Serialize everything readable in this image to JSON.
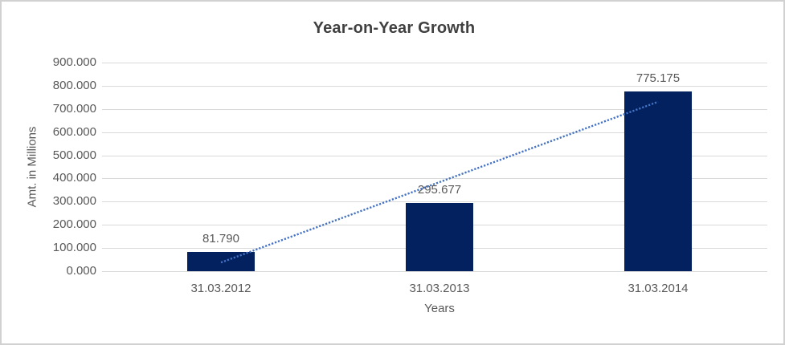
{
  "chart_data": {
    "type": "bar",
    "title": "Year-on-Year Growth",
    "xlabel": "Years",
    "ylabel": "Amt. in Millions",
    "categories": [
      "31.03.2012",
      "31.03.2013",
      "31.03.2014"
    ],
    "values": [
      81790,
      295677,
      775175
    ],
    "value_labels": [
      "81.790",
      "295.677",
      "775.175"
    ],
    "ytick_values": [
      0,
      100000,
      200000,
      300000,
      400000,
      500000,
      600000,
      700000,
      800000,
      900000
    ],
    "ytick_labels": [
      "0.000",
      "100.000",
      "200.000",
      "300.000",
      "400.000",
      "500.000",
      "600.000",
      "700.000",
      "800.000",
      "900.000"
    ],
    "ylim": [
      0,
      900000
    ],
    "grid": true,
    "legend": "none",
    "trendline": {
      "type": "linear",
      "style": "dotted"
    },
    "colors": {
      "bar": "#02215E",
      "trendline": "#4472C4",
      "gridline": "#D9D9D9",
      "title_text": "#404040",
      "axis_text": "#595959",
      "border": "#D1D1D1",
      "background": "#FFFFFF"
    }
  }
}
